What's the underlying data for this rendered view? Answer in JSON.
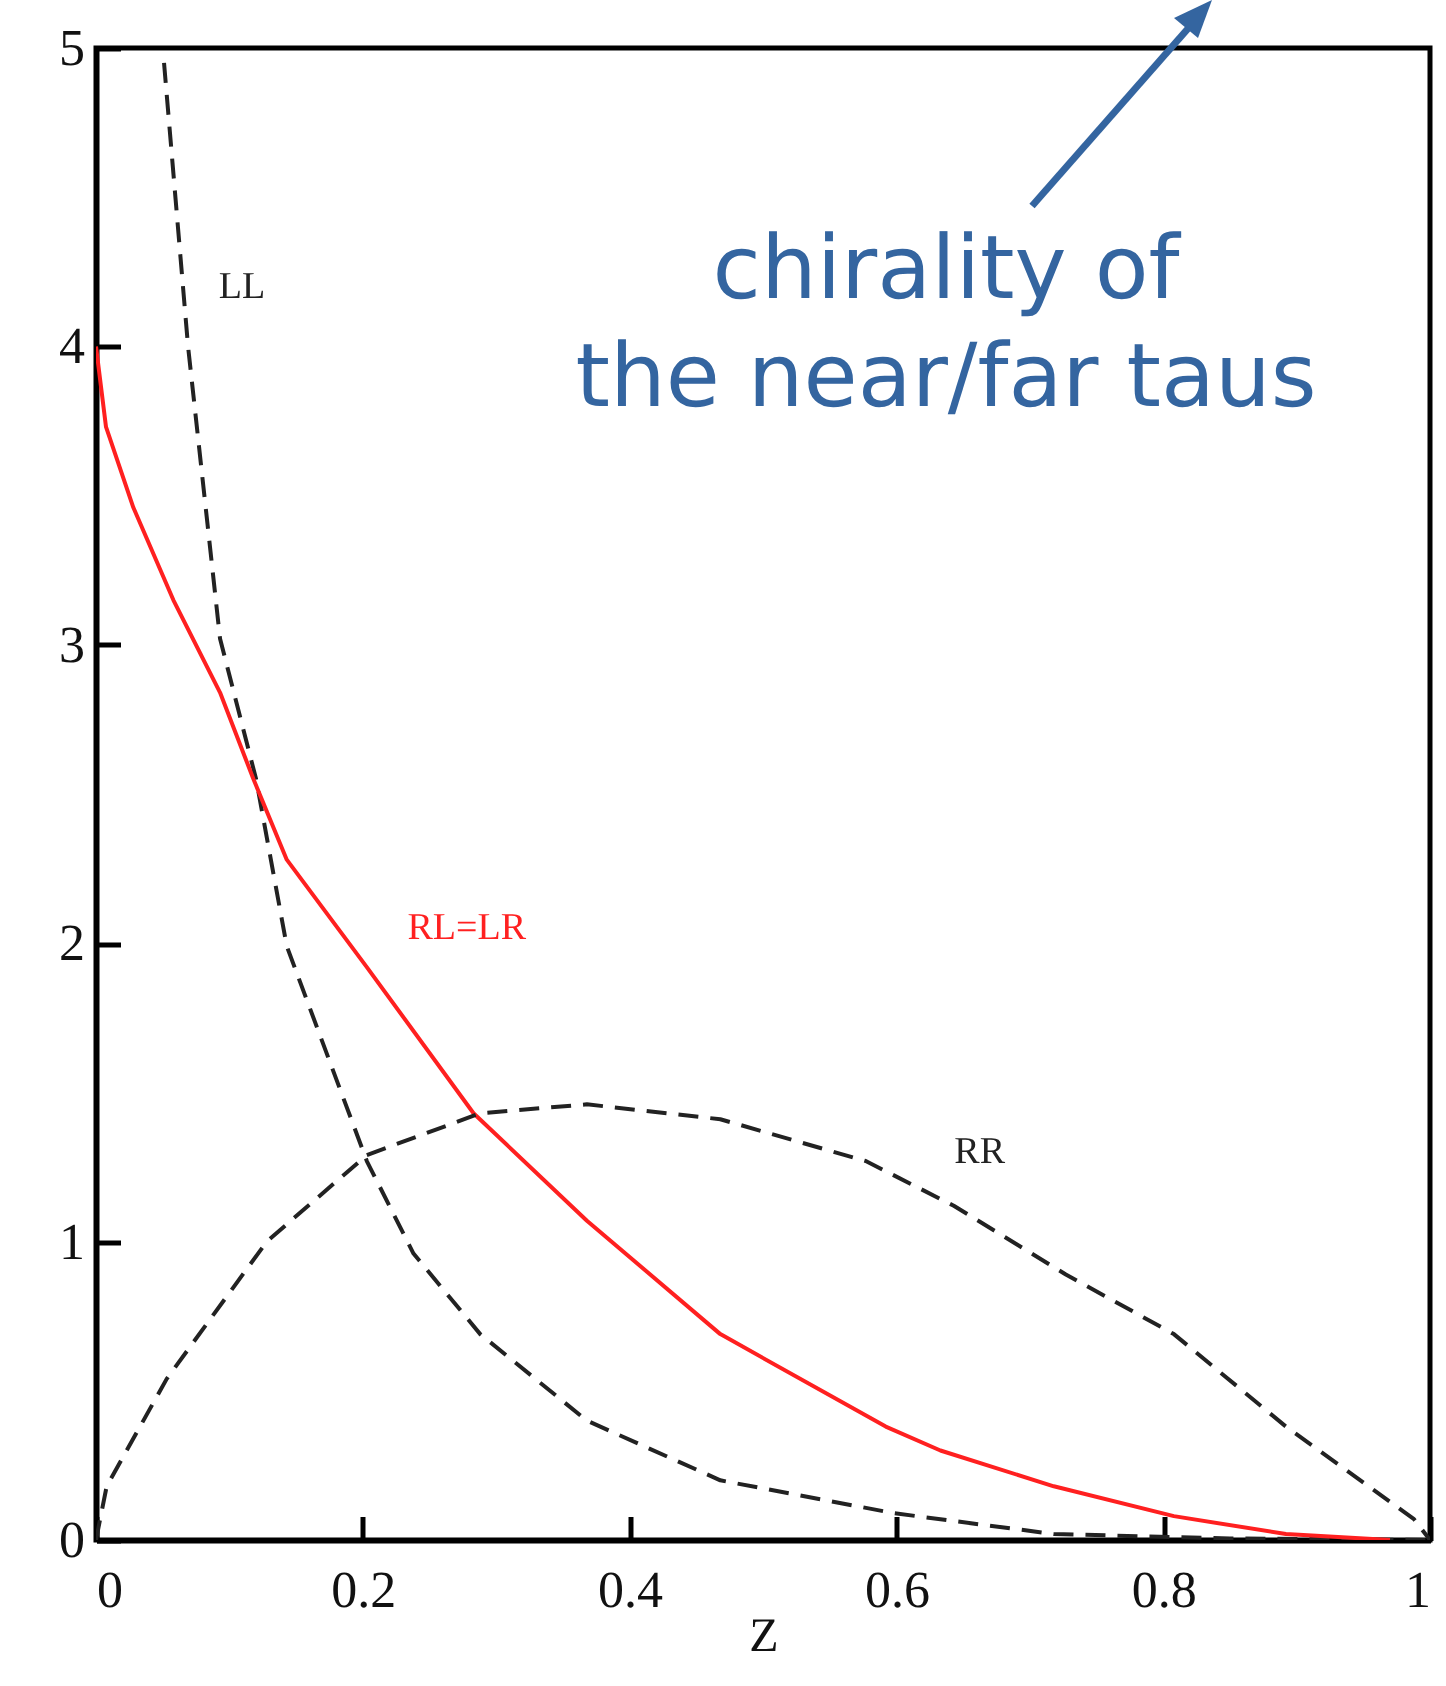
{
  "chart_data": {
    "type": "line",
    "xlabel": "Z",
    "xlim": [
      0,
      1
    ],
    "ylim": [
      0,
      5
    ],
    "xticks": [
      0,
      0.2,
      0.4,
      0.6,
      0.8,
      1
    ],
    "yticks": [
      0,
      1,
      2,
      3,
      4,
      5
    ],
    "marker": "none",
    "annotations": [
      "chirality of",
      "the near/far taus"
    ],
    "series": [
      {
        "name": "LL",
        "color": "#222222",
        "line_style": "dashed",
        "x": [
          0.051,
          0.069,
          0.093,
          0.12,
          0.143,
          0.203,
          0.238,
          0.288,
          0.368,
          0.468,
          0.598,
          0.718,
          0.85,
          1.0
        ],
        "values": [
          4.95,
          4.0,
          3.02,
          2.55,
          1.99,
          1.27,
          0.96,
          0.69,
          0.4,
          0.2,
          0.09,
          0.02,
          0.005,
          0
        ]
      },
      {
        "name": "RL=LR",
        "color": "#ff2020",
        "line_style": "solid",
        "x": [
          0,
          0.0075,
          0.028,
          0.058,
          0.093,
          0.118,
          0.143,
          0.203,
          0.283,
          0.368,
          0.468,
          0.592,
          0.633,
          0.718,
          0.808,
          0.892,
          0.97
        ],
        "values": [
          4.0,
          3.73,
          3.46,
          3.15,
          2.84,
          2.55,
          2.28,
          1.92,
          1.43,
          1.07,
          0.69,
          0.38,
          0.3,
          0.18,
          0.08,
          0.02,
          0
        ]
      },
      {
        "name": "RR",
        "color": "#222222",
        "line_style": "dashed",
        "x": [
          0,
          0.008,
          0.053,
          0.128,
          0.203,
          0.288,
          0.368,
          0.468,
          0.577,
          0.643,
          0.727,
          0.808,
          0.892,
          0.988,
          1.0
        ],
        "values": [
          0,
          0.18,
          0.54,
          1.0,
          1.29,
          1.43,
          1.46,
          1.41,
          1.27,
          1.12,
          0.89,
          0.69,
          0.38,
          0.07,
          0
        ]
      }
    ]
  }
}
